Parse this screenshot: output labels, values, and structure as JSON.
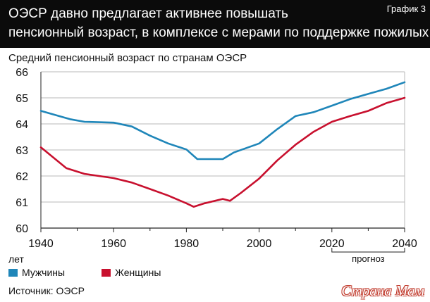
{
  "header": {
    "title_line1": "ОЭСР давно предлагает активнее повышать",
    "title_line2": "пенсионный возраст, в комплексе с мерами по поддержке пожилых",
    "tag": "График 3",
    "background": "#0b0b0b"
  },
  "chart_data": {
    "type": "line",
    "title": "Средний пенсионный возраст по странам ОЭСР",
    "xlabel": "лет",
    "ylabel": "",
    "xlim": [
      1940,
      2040
    ],
    "ylim": [
      60,
      66
    ],
    "x_ticks": [
      1940,
      1960,
      1980,
      2000,
      2020,
      2040
    ],
    "y_ticks": [
      60,
      61,
      62,
      63,
      64,
      65,
      66
    ],
    "grid": "horizontal",
    "forecast_label": "прогноз",
    "forecast_range": [
      2020,
      2040
    ],
    "series": [
      {
        "name": "Мужчины",
        "color": "#1f86b9",
        "points": [
          [
            1940,
            64.5
          ],
          [
            1945,
            64.3
          ],
          [
            1948,
            64.18
          ],
          [
            1952,
            64.08
          ],
          [
            1960,
            64.05
          ],
          [
            1965,
            63.9
          ],
          [
            1970,
            63.55
          ],
          [
            1975,
            63.25
          ],
          [
            1980,
            63.02
          ],
          [
            1983,
            62.65
          ],
          [
            1990,
            62.65
          ],
          [
            1993,
            62.9
          ],
          [
            2000,
            63.25
          ],
          [
            2005,
            63.8
          ],
          [
            2010,
            64.3
          ],
          [
            2015,
            64.45
          ],
          [
            2020,
            64.7
          ],
          [
            2025,
            64.95
          ],
          [
            2030,
            65.15
          ],
          [
            2035,
            65.35
          ],
          [
            2040,
            65.6
          ]
        ]
      },
      {
        "name": "Женщины",
        "color": "#c8102e",
        "points": [
          [
            1940,
            63.1
          ],
          [
            1947,
            62.3
          ],
          [
            1952,
            62.08
          ],
          [
            1960,
            61.92
          ],
          [
            1965,
            61.75
          ],
          [
            1970,
            61.5
          ],
          [
            1975,
            61.25
          ],
          [
            1980,
            60.95
          ],
          [
            1982,
            60.82
          ],
          [
            1985,
            60.95
          ],
          [
            1990,
            61.12
          ],
          [
            1992,
            61.05
          ],
          [
            1995,
            61.35
          ],
          [
            2000,
            61.9
          ],
          [
            2005,
            62.6
          ],
          [
            2010,
            63.2
          ],
          [
            2015,
            63.7
          ],
          [
            2020,
            64.08
          ],
          [
            2025,
            64.3
          ],
          [
            2030,
            64.5
          ],
          [
            2035,
            64.8
          ],
          [
            2040,
            65.0
          ]
        ]
      }
    ]
  },
  "legend": {
    "men": "Мужчины",
    "women": "Женщины"
  },
  "source": "Источник: ОЭСР",
  "watermark": "Страна Мам"
}
